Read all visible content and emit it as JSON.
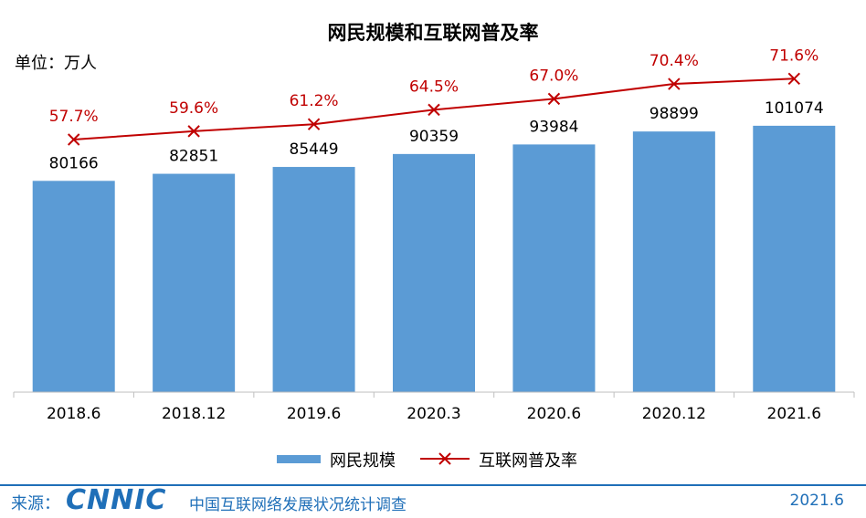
{
  "chart_data": {
    "type": "bar",
    "title": "网民规模和互联网普及率",
    "unit_label": "单位：万人",
    "categories": [
      "2018.6",
      "2018.12",
      "2019.6",
      "2020.3",
      "2020.6",
      "2020.12",
      "2021.6"
    ],
    "series": [
      {
        "name": "网民规模",
        "type": "bar",
        "values": [
          80166,
          82851,
          85449,
          90359,
          93984,
          98899,
          101074
        ],
        "color": "#5b9bd5"
      },
      {
        "name": "互联网普及率",
        "type": "line",
        "values": [
          57.7,
          59.6,
          61.2,
          64.5,
          67.0,
          70.4,
          71.6
        ],
        "value_labels": [
          "57.7%",
          "59.6%",
          "61.2%",
          "64.5%",
          "67.0%",
          "70.4%",
          "71.6%"
        ],
        "color": "#c00000",
        "marker": "x"
      }
    ],
    "grid": false,
    "legend_position": "bottom"
  },
  "footer": {
    "source_label": "来源：",
    "logo_text": "CNNIC",
    "report_name": "中国互联网络发展状况统计调查",
    "date": "2021.6"
  },
  "colors": {
    "footer_blue": "#1f6fb8",
    "accent_red": "#c00000",
    "bar_blue": "#5b9bd5"
  }
}
